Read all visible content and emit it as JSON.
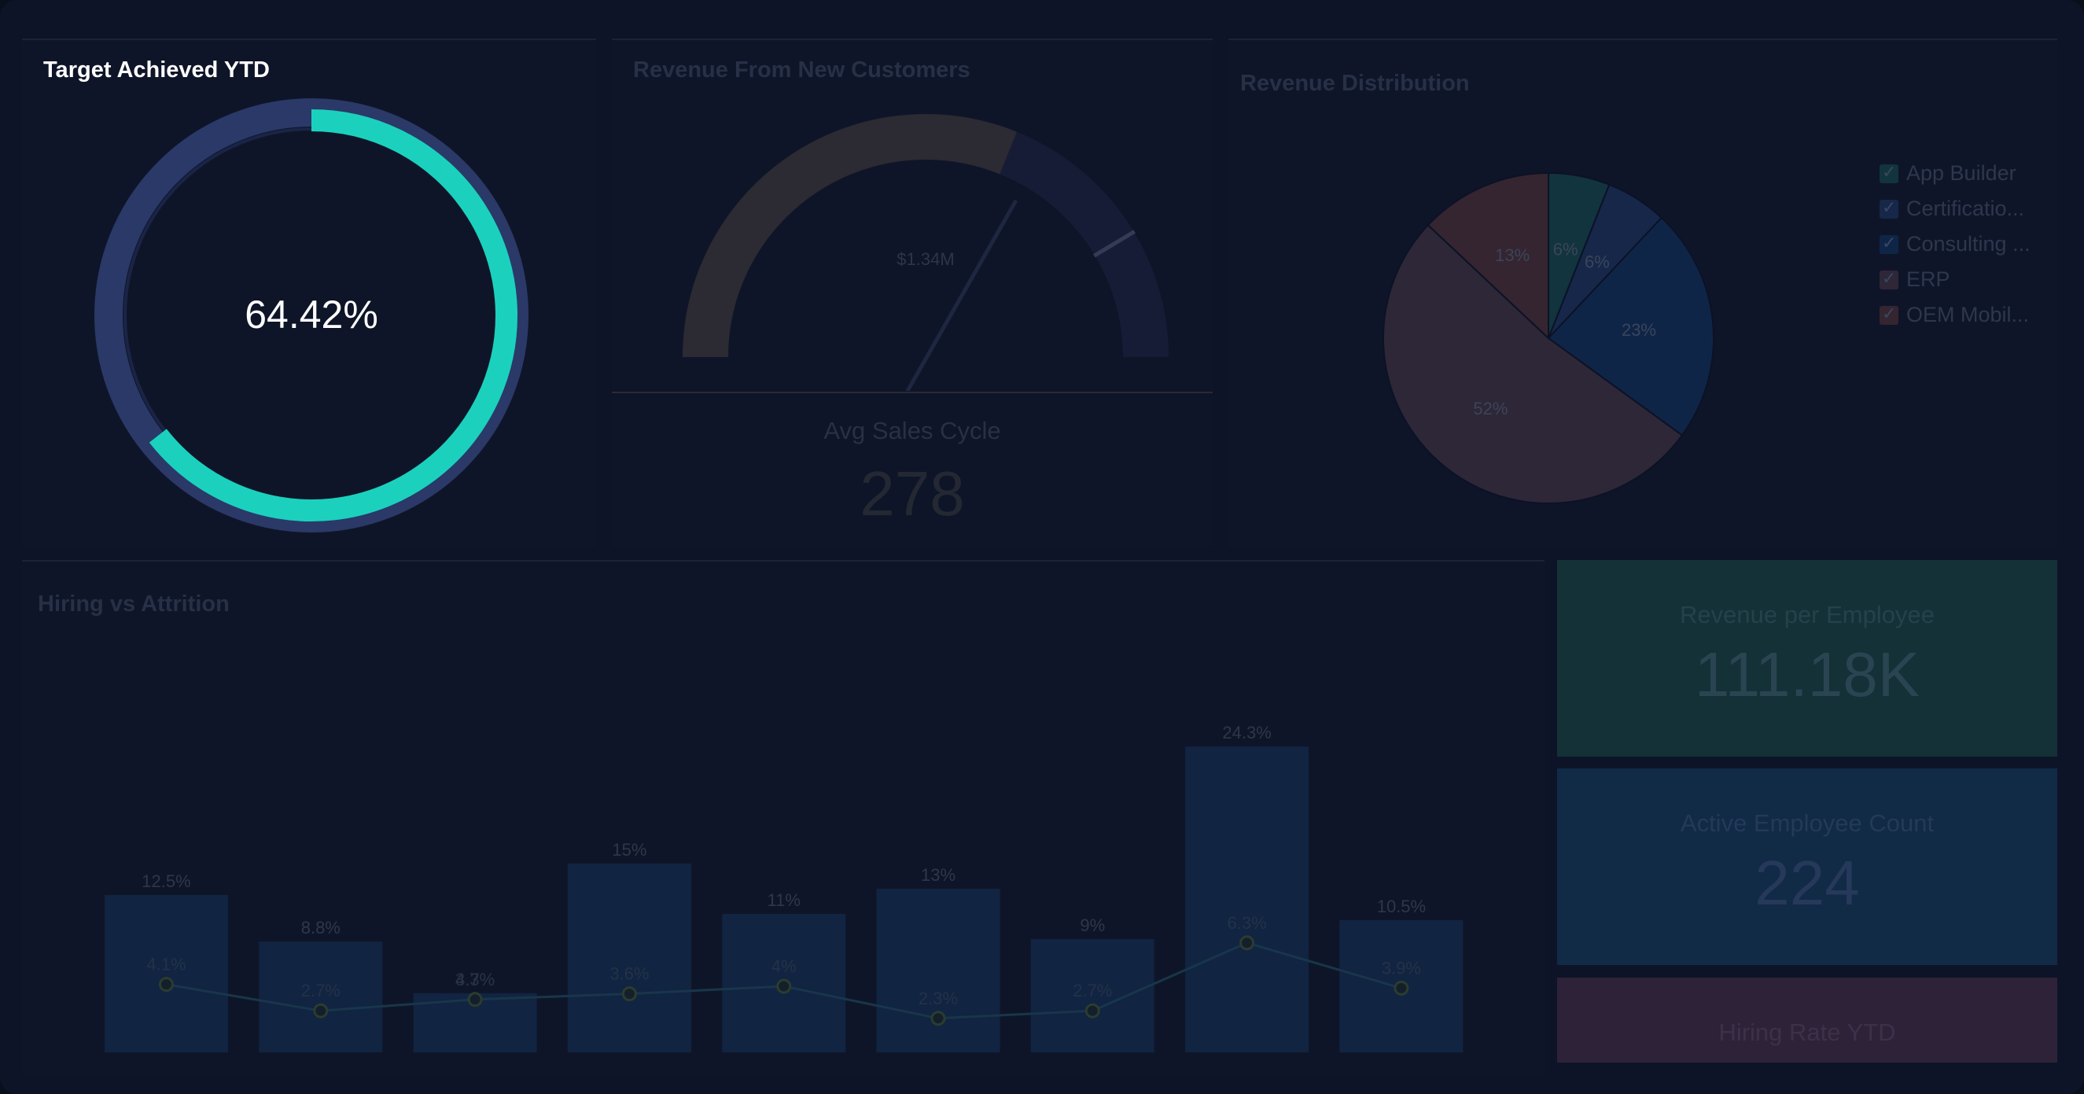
{
  "panels": {
    "target": {
      "title": "Target Achieved YTD",
      "value": "64.42%",
      "fraction": 0.6442
    },
    "new_customers": {
      "title": "Revenue From New Customers",
      "gauge_label": "$1.34M",
      "fill_fraction": 0.75
    },
    "avg_sales": {
      "title": "Avg Sales Cycle",
      "value": "278"
    },
    "distribution": {
      "title": "Revenue Distribution"
    },
    "hiring": {
      "title": "Hiring vs Attrition"
    },
    "rev_per_employee": {
      "title": "Revenue per Employee",
      "value": "111.18K"
    },
    "active_employees": {
      "title": "Active Employee Count",
      "value": "224"
    },
    "hiring_rate": {
      "title": "Hiring Rate YTD"
    }
  },
  "legend": [
    {
      "label": "App Builder",
      "color": "#12343f"
    },
    {
      "label": "Certificatio...",
      "color": "#16274a"
    },
    {
      "label": "Consulting ...",
      "color": "#0f2548"
    },
    {
      "label": "ERP",
      "color": "#2e2738"
    },
    {
      "label": "OEM Mobil...",
      "color": "#342530"
    }
  ],
  "colors": {
    "teal": "#1bd1be",
    "ring_track": "#2a3968",
    "kpi_green": "#133137",
    "kpi_blue": "#112a46",
    "kpi_purple": "#2e2238"
  },
  "chart_data": [
    {
      "type": "pie",
      "title": "Revenue Distribution",
      "categories": [
        "App Builder",
        "Certificatio...",
        "Consulting ...",
        "ERP",
        "OEM Mobil..."
      ],
      "values": [
        6,
        6,
        23,
        52,
        13
      ],
      "labels": [
        "6%",
        "6%",
        "23%",
        "52%",
        "13%"
      ]
    },
    {
      "type": "bar",
      "title": "Hiring vs Attrition",
      "series": [
        {
          "values": [
            12.5,
            8.8,
            4.7,
            15,
            11,
            13,
            9,
            24.3,
            10.5
          ],
          "labels": [
            "12.5%",
            "8.8%",
            "4.7%",
            "15%",
            "11%",
            "13%",
            "9%",
            "24.3%",
            "10.5%"
          ]
        },
        {
          "values": [
            4.1,
            2.7,
            3.3,
            3.6,
            4,
            2.3,
            2.7,
            6.3,
            3.9
          ],
          "labels": [
            "4.1%",
            "2.7%",
            "3.3%",
            "3.6%",
            "4%",
            "2.3%",
            "2.7%",
            "6.3%",
            "3.9%"
          ]
        }
      ],
      "ylim": [
        0,
        25
      ]
    }
  ]
}
